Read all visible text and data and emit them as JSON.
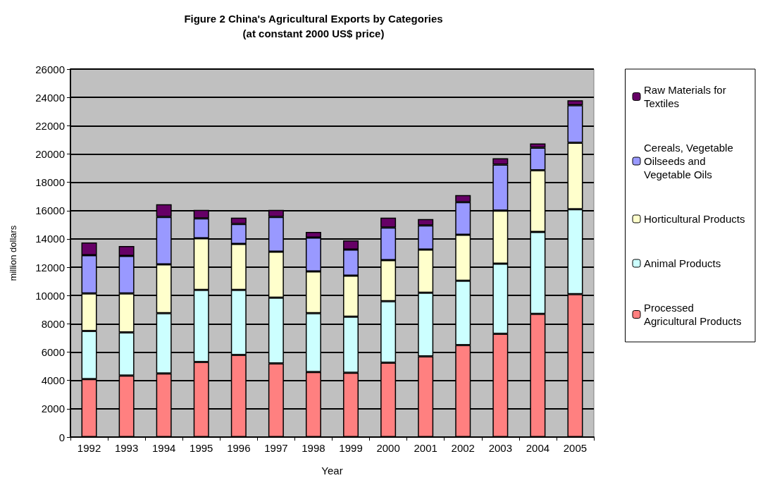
{
  "chart_data": {
    "type": "bar",
    "title": "Figure 2 China's Agricultural Exports by Categories",
    "subtitle": "(at constant 2000 US$ price)",
    "xlabel": "Year",
    "ylabel": "million dollars",
    "categories": [
      "1992",
      "1993",
      "1994",
      "1995",
      "1996",
      "1997",
      "1998",
      "1999",
      "2000",
      "2001",
      "2002",
      "2003",
      "2004",
      "2005"
    ],
    "stacked": true,
    "ylim": [
      0,
      26000
    ],
    "yticks": [
      0,
      2000,
      4000,
      6000,
      8000,
      10000,
      12000,
      14000,
      16000,
      18000,
      20000,
      22000,
      24000,
      26000
    ],
    "grid": "y",
    "legend": "right",
    "series": [
      {
        "name": "Processed Agricultural Products",
        "color": "#ff8080",
        "values": [
          4100,
          4350,
          4500,
          5300,
          5800,
          5200,
          4600,
          4550,
          5250,
          5700,
          6500,
          7300,
          8700,
          10100
        ]
      },
      {
        "name": "Animal Products",
        "color": "#ccffff",
        "values": [
          3400,
          3050,
          4250,
          5100,
          4600,
          4650,
          4150,
          3950,
          4350,
          4500,
          4550,
          4950,
          5800,
          6000
        ]
      },
      {
        "name": "Horticultural Products",
        "color": "#ffffcc",
        "values": [
          2650,
          2750,
          3450,
          3650,
          3250,
          3250,
          2950,
          2900,
          2900,
          3050,
          3250,
          3750,
          4350,
          4700
        ]
      },
      {
        "name": "Cereals, Vegetable Oilseeds and Vegetable Oils",
        "color": "#9999ff",
        "values": [
          2700,
          2650,
          3350,
          1400,
          1400,
          2450,
          2400,
          1850,
          2300,
          1700,
          2300,
          3250,
          1600,
          2650
        ]
      },
      {
        "name": "Raw Materials for Textiles",
        "color": "#660066",
        "values": [
          900,
          700,
          900,
          600,
          450,
          500,
          400,
          650,
          700,
          450,
          500,
          450,
          300,
          350
        ]
      }
    ]
  }
}
